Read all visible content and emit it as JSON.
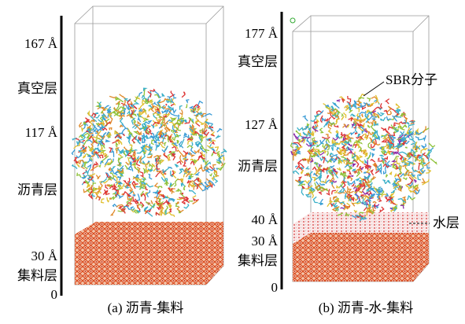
{
  "panels": [
    {
      "caption": "(a)  沥青-集料",
      "labels": [
        "167 Å",
        "真空层",
        "117 Å",
        "沥青层",
        "30 Å",
        "集料层",
        "0"
      ]
    },
    {
      "caption": "(b) 沥青-水-集料",
      "labels": [
        "177 Å",
        "真空层",
        "127 Å",
        "沥青层",
        "40 Å",
        "30 Å",
        "集料层",
        "0"
      ],
      "annotations": [
        "SBR分子",
        "水层"
      ]
    }
  ]
}
